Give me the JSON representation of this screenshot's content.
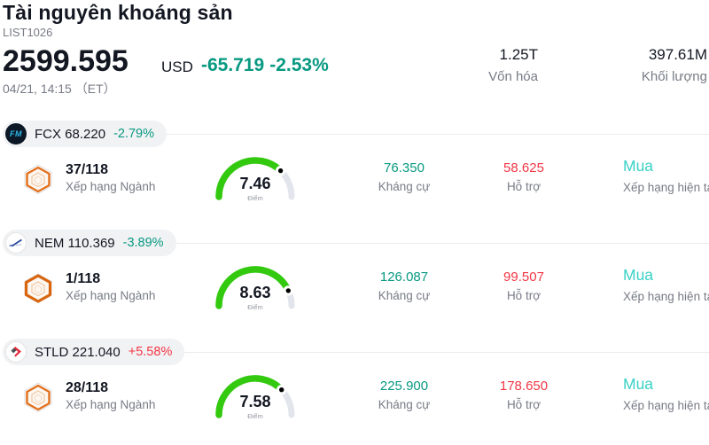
{
  "header": {
    "title": "Tài nguyên khoáng sản",
    "list_id": "LIST1026",
    "price": "2599.595",
    "currency": "USD",
    "change": "-65.719",
    "change_percent": "-2.53%",
    "change_color": "#089981",
    "datetime": "04/21, 14:15 （ET）",
    "stats": [
      {
        "value": "1.25T",
        "label": "Vốn hóa"
      },
      {
        "value": "397.61M",
        "label": "Khối lượng"
      }
    ]
  },
  "labels": {
    "industry_rank": "Xếp hạng Ngành",
    "score_unit": "Điểm",
    "resistance": "Kháng cự",
    "support": "Hỗ trợ",
    "current_rating": "Xếp hạng hiện tại"
  },
  "colors": {
    "teal": "#089981",
    "red": "#f23645",
    "buy": "#3bd1c6",
    "gauge_green": "#32c90f",
    "gauge_track": "#e2e5ec",
    "gauge_dot": "#000000"
  },
  "stocks": [
    {
      "ticker": "FCX",
      "price": "68.220",
      "change_percent": "-2.79%",
      "change_color": "#089981",
      "logo": "fcx-logo",
      "rank": "37/118",
      "score": 7.46,
      "score_text": "7.46",
      "resistance": "76.350",
      "support": "58.625",
      "rating": "Mua"
    },
    {
      "ticker": "NEM",
      "price": "110.369",
      "change_percent": "-3.89%",
      "change_color": "#089981",
      "logo": "nem-logo",
      "rank": "1/118",
      "score": 8.63,
      "score_text": "8.63",
      "resistance": "126.087",
      "support": "99.507",
      "rating": "Mua"
    },
    {
      "ticker": "STLD",
      "price": "221.040",
      "change_percent": "+5.58%",
      "change_color": "#f23645",
      "logo": "stld-logo",
      "rank": "28/118",
      "score": 7.58,
      "score_text": "7.58",
      "resistance": "225.900",
      "support": "178.650",
      "rating": "Mua"
    }
  ]
}
